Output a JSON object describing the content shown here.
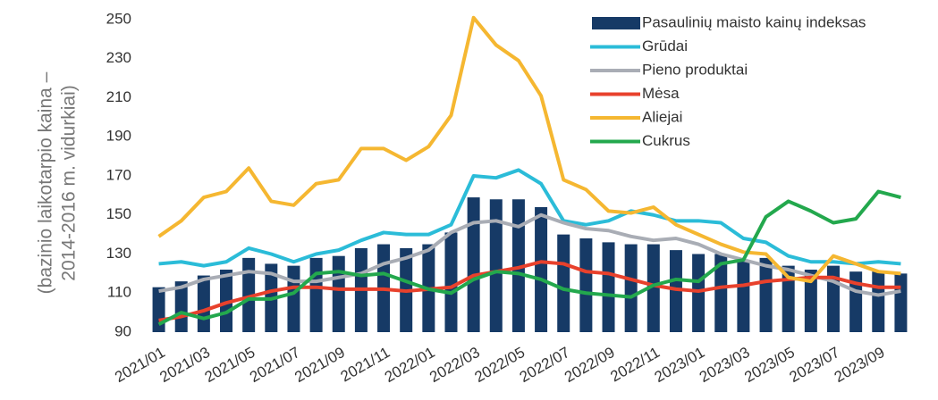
{
  "chart_data": {
    "type": "bar",
    "ylabel": [
      "(bazinio laikotarpio kaina –",
      "2014-2016 m. vidurkiai)"
    ],
    "categories": [
      "2021/01",
      null,
      "2021/03",
      null,
      "2021/05",
      null,
      "2021/07",
      null,
      "2021/09",
      null,
      "2021/11",
      null,
      "2022/01",
      null,
      "2022/03",
      null,
      "2022/05",
      null,
      "2022/07",
      null,
      "2022/09",
      null,
      "2022/11",
      null,
      "2023/01",
      null,
      "2023/03",
      null,
      "2023/05",
      null,
      "2023/07",
      null,
      "2023/09",
      null
    ],
    "ylim": [
      90,
      250
    ],
    "yticks": [
      90,
      110,
      130,
      150,
      170,
      190,
      210,
      230,
      250
    ],
    "grid": false,
    "legend": "top-right",
    "series": [
      {
        "name": "Pasaulinių maisto kainų indeksas",
        "type": "bar",
        "color": "#163a66",
        "values": [
          113,
          116,
          119,
          122,
          128,
          125,
          124,
          128,
          129,
          133,
          135,
          133,
          135,
          141,
          159,
          158,
          158,
          154,
          140,
          138,
          136,
          135,
          135,
          132,
          130,
          130,
          127,
          128,
          124,
          122,
          124,
          121,
          121,
          120
        ]
      },
      {
        "name": "Grūdai",
        "type": "line",
        "color": "#2bbcd8",
        "values": [
          125,
          126,
          124,
          126,
          133,
          130,
          126,
          130,
          132,
          137,
          141,
          140,
          140,
          145,
          170,
          169,
          173,
          166,
          147,
          145,
          147,
          152,
          150,
          147,
          147,
          146,
          138,
          136,
          129,
          126,
          126,
          125,
          126,
          125
        ]
      },
      {
        "name": "Pieno produktai",
        "type": "line",
        "color": "#a9adb5",
        "values": [
          111,
          113,
          117,
          119,
          121,
          120,
          116,
          116,
          118,
          120,
          125,
          128,
          132,
          141,
          146,
          147,
          144,
          150,
          146,
          143,
          142,
          139,
          137,
          138,
          135,
          130,
          127,
          124,
          122,
          119,
          116,
          111,
          109,
          111
        ]
      },
      {
        "name": "Mėsa",
        "type": "line",
        "color": "#e8412c",
        "values": [
          96,
          98,
          101,
          105,
          108,
          111,
          113,
          113,
          112,
          112,
          112,
          111,
          112,
          113,
          119,
          121,
          123,
          126,
          125,
          121,
          120,
          117,
          114,
          112,
          111,
          113,
          114,
          116,
          117,
          118,
          118,
          115,
          113,
          113
        ]
      },
      {
        "name": "Aliejai",
        "type": "line",
        "color": "#f5b731",
        "values": [
          139,
          147,
          159,
          162,
          174,
          157,
          155,
          166,
          168,
          184,
          184,
          178,
          185,
          201,
          251,
          237,
          229,
          211,
          168,
          163,
          152,
          151,
          154,
          145,
          140,
          135,
          131,
          130,
          118,
          116,
          129,
          125,
          121,
          120
        ]
      },
      {
        "name": "Cukrus",
        "type": "line",
        "color": "#23a84d",
        "values": [
          94,
          100,
          97,
          100,
          107,
          107,
          110,
          120,
          121,
          119,
          120,
          116,
          112,
          110,
          117,
          121,
          120,
          117,
          112,
          110,
          109,
          108,
          114,
          117,
          116,
          125,
          127,
          149,
          157,
          152,
          146,
          148,
          162,
          159
        ]
      }
    ]
  }
}
